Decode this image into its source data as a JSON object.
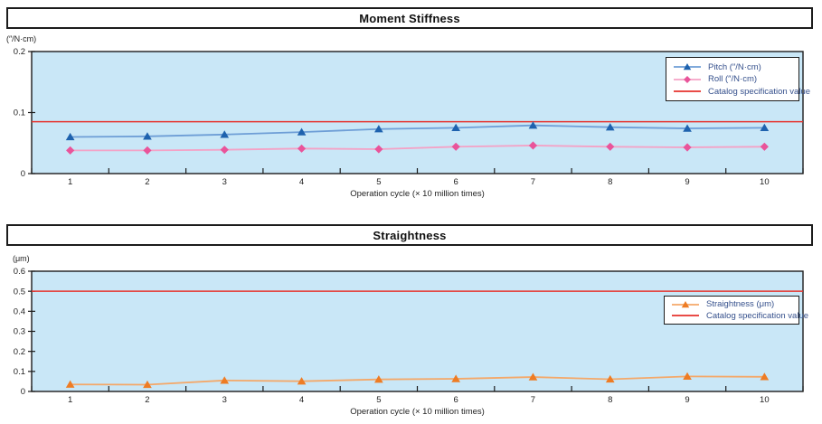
{
  "chart_data": [
    {
      "type": "line",
      "title": "Moment Stiffness",
      "unit_label": "(″/N·cm)",
      "xlabel": "Operation cycle (× 10 million times)",
      "categories": [
        "1",
        "2",
        "3",
        "4",
        "5",
        "6",
        "7",
        "8",
        "9",
        "10"
      ],
      "ylim": [
        0,
        0.2
      ],
      "ytick_step": 0.1,
      "plot_bg": "#c9e7f7",
      "axis_color": "#1c1c1c",
      "legend_position": "top-right",
      "grid": false,
      "series": [
        {
          "name": "Pitch (″/N·cm)",
          "marker": "triangle",
          "line_color": "#6e9ed6",
          "marker_color": "#1e62ae",
          "values": [
            0.06,
            0.061,
            0.064,
            0.068,
            0.073,
            0.075,
            0.079,
            0.076,
            0.074,
            0.075
          ]
        },
        {
          "name": "Roll (″/N·cm)",
          "marker": "diamond",
          "line_color": "#f4a2c6",
          "marker_color": "#e9549a",
          "values": [
            0.038,
            0.038,
            0.039,
            0.041,
            0.04,
            0.044,
            0.046,
            0.044,
            0.043,
            0.044
          ]
        }
      ],
      "reference_line": {
        "label": "Catalog specification value",
        "value": 0.085,
        "color": "#e6332d"
      }
    },
    {
      "type": "line",
      "title": "Straightness",
      "unit_label": "(μm)",
      "xlabel": "Operation cycle (× 10 million times)",
      "categories": [
        "1",
        "2",
        "3",
        "4",
        "5",
        "6",
        "7",
        "8",
        "9",
        "10"
      ],
      "ylim": [
        0,
        0.6
      ],
      "ytick_step": 0.1,
      "plot_bg": "#c9e7f7",
      "axis_color": "#1c1c1c",
      "legend_position": "right",
      "grid": false,
      "series": [
        {
          "name": "Straightness (μm)",
          "marker": "triangle",
          "line_color": "#f4a869",
          "marker_color": "#ee7c24",
          "values": [
            0.035,
            0.034,
            0.055,
            0.051,
            0.06,
            0.063,
            0.072,
            0.061,
            0.075,
            0.073
          ]
        }
      ],
      "reference_line": {
        "label": "Catalog specification value",
        "value": 0.5,
        "color": "#e6332d"
      }
    }
  ]
}
